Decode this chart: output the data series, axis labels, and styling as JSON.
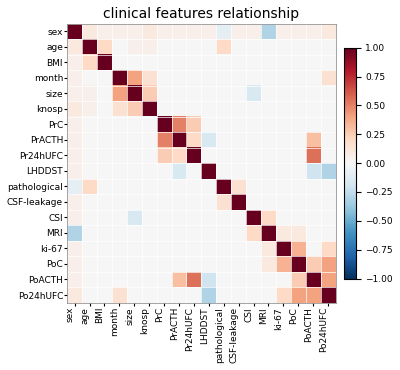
{
  "title": "clinical features relationship",
  "labels": [
    "sex",
    "age",
    "BMI",
    "month",
    "size",
    "knosp",
    "PrC",
    "PrACTH",
    "Pr24hUFC",
    "LHDDST",
    "pathological",
    "CSF-leakage",
    "CSI",
    "MRI",
    "ki-67",
    "PoC",
    "PoACTH",
    "Po24hUFC"
  ],
  "corr_matrix": [
    [
      1.0,
      0.1,
      0.05,
      0.05,
      0.05,
      0.1,
      0.05,
      0.05,
      0.05,
      0.05,
      -0.1,
      0.05,
      0.05,
      -0.3,
      0.05,
      0.05,
      0.05,
      0.1
    ],
    [
      0.1,
      1.0,
      0.2,
      0.0,
      0.05,
      0.05,
      0.0,
      0.0,
      0.0,
      0.0,
      0.2,
      0.0,
      0.0,
      0.0,
      0.0,
      0.0,
      0.0,
      0.0
    ],
    [
      0.05,
      0.2,
      1.0,
      0.0,
      0.0,
      0.0,
      0.0,
      0.0,
      0.0,
      0.0,
      0.0,
      0.0,
      0.0,
      0.0,
      0.0,
      0.0,
      0.0,
      0.0
    ],
    [
      0.05,
      0.0,
      0.0,
      1.0,
      0.4,
      0.15,
      0.0,
      0.0,
      0.0,
      0.0,
      0.0,
      0.0,
      0.0,
      0.0,
      0.0,
      0.0,
      0.0,
      0.15
    ],
    [
      0.05,
      0.05,
      0.0,
      0.4,
      1.0,
      0.25,
      0.0,
      0.0,
      0.0,
      0.0,
      0.0,
      0.0,
      -0.15,
      0.0,
      0.0,
      0.0,
      0.0,
      0.0
    ],
    [
      0.1,
      0.05,
      0.0,
      0.15,
      0.25,
      1.0,
      0.0,
      0.0,
      0.0,
      0.0,
      0.0,
      0.0,
      0.0,
      0.0,
      0.0,
      0.0,
      0.0,
      0.0
    ],
    [
      0.05,
      0.0,
      0.0,
      0.0,
      0.0,
      0.0,
      1.0,
      0.5,
      0.25,
      0.0,
      0.0,
      0.0,
      0.0,
      0.0,
      0.0,
      0.0,
      0.0,
      0.0
    ],
    [
      0.05,
      0.0,
      0.0,
      0.0,
      0.0,
      0.0,
      0.5,
      1.0,
      0.2,
      -0.15,
      0.0,
      0.0,
      0.0,
      0.0,
      0.0,
      0.0,
      0.3,
      0.0
    ],
    [
      0.05,
      0.0,
      0.0,
      0.0,
      0.0,
      0.0,
      0.25,
      0.2,
      1.0,
      0.0,
      0.0,
      0.0,
      0.0,
      0.0,
      0.0,
      0.0,
      0.55,
      0.0
    ],
    [
      0.05,
      0.0,
      0.0,
      0.0,
      0.0,
      0.0,
      0.0,
      -0.15,
      0.0,
      1.0,
      0.0,
      0.0,
      0.0,
      0.0,
      0.0,
      0.0,
      -0.2,
      -0.3
    ],
    [
      -0.1,
      0.2,
      0.0,
      0.0,
      0.0,
      0.0,
      0.0,
      0.0,
      0.0,
      0.0,
      1.0,
      0.15,
      0.0,
      0.0,
      0.0,
      0.0,
      0.0,
      0.0
    ],
    [
      0.05,
      0.0,
      0.0,
      0.0,
      0.0,
      0.0,
      0.0,
      0.0,
      0.0,
      0.0,
      0.15,
      1.0,
      0.0,
      0.0,
      0.0,
      0.0,
      0.0,
      0.0
    ],
    [
      0.05,
      0.0,
      0.0,
      0.0,
      -0.15,
      0.0,
      0.0,
      0.0,
      0.0,
      0.0,
      0.0,
      0.0,
      1.0,
      0.2,
      0.0,
      0.0,
      0.0,
      0.0
    ],
    [
      -0.3,
      0.0,
      0.0,
      0.0,
      0.0,
      0.0,
      0.0,
      0.0,
      0.0,
      0.0,
      0.0,
      0.0,
      0.2,
      1.0,
      0.1,
      0.1,
      0.0,
      0.0
    ],
    [
      0.05,
      0.0,
      0.0,
      0.0,
      0.0,
      0.0,
      0.0,
      0.0,
      0.0,
      0.0,
      0.0,
      0.0,
      0.0,
      0.1,
      1.0,
      0.35,
      0.0,
      0.2
    ],
    [
      0.05,
      0.0,
      0.0,
      0.0,
      0.0,
      0.0,
      0.0,
      0.0,
      0.0,
      0.0,
      0.0,
      0.0,
      0.0,
      0.1,
      0.35,
      1.0,
      0.25,
      0.4
    ],
    [
      0.05,
      0.0,
      0.0,
      0.0,
      0.0,
      0.0,
      0.0,
      0.3,
      0.55,
      -0.2,
      0.0,
      0.0,
      0.0,
      0.0,
      0.0,
      0.25,
      1.0,
      0.4
    ],
    [
      0.1,
      0.0,
      0.0,
      0.15,
      0.0,
      0.0,
      0.0,
      0.0,
      0.0,
      -0.3,
      0.0,
      0.0,
      0.0,
      0.0,
      0.2,
      0.4,
      0.4,
      1.0
    ]
  ],
  "cmap": "RdBu_r",
  "vmin": -1.0,
  "vmax": 1.0,
  "colorbar_ticks": [
    1.0,
    0.75,
    0.5,
    0.25,
    0.0,
    -0.25,
    -0.5,
    -0.75,
    -1.0
  ],
  "title_fontsize": 10,
  "tick_fontsize": 6.5,
  "xlabel_rotation": 90
}
